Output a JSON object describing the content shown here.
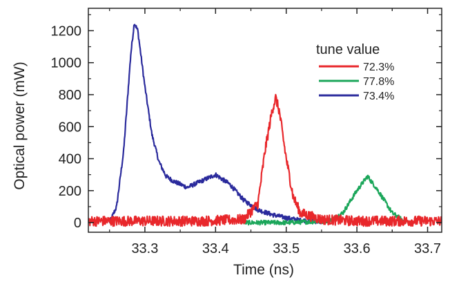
{
  "chart_data": {
    "type": "line",
    "xlabel": "Time (ns)",
    "ylabel": "Optical power (mW)",
    "xlim": [
      33.22,
      33.72
    ],
    "ylim": [
      -60,
      1340
    ],
    "x_ticks": [
      33.3,
      33.4,
      33.5,
      33.6,
      33.7
    ],
    "x_tick_labels": [
      "33.3",
      "33.4",
      "33.5",
      "33.6",
      "33.7"
    ],
    "y_ticks": [
      0,
      200,
      400,
      600,
      800,
      1000,
      1200
    ],
    "y_tick_labels": [
      "0",
      "200",
      "400",
      "600",
      "800",
      "1000",
      "1200"
    ],
    "grid": false,
    "legend": {
      "title": "tune value",
      "placement": "top-right"
    },
    "series": [
      {
        "name": "72.3%",
        "color": "#e8272b",
        "x": [
          33.22,
          33.3,
          33.38,
          33.44,
          33.46,
          33.47,
          33.48,
          33.485,
          33.49,
          33.5,
          33.51,
          33.52,
          33.55,
          33.6,
          33.65,
          33.72
        ],
        "y": [
          10,
          10,
          10,
          20,
          120,
          450,
          700,
          780,
          700,
          400,
          160,
          60,
          20,
          10,
          10,
          10
        ]
      },
      {
        "name": "77.8%",
        "color": "#1ba65a",
        "x": [
          33.44,
          33.5,
          33.56,
          33.58,
          33.6,
          33.615,
          33.63,
          33.65,
          33.67
        ],
        "y": [
          0,
          0,
          10,
          60,
          200,
          290,
          200,
          60,
          0
        ]
      },
      {
        "name": "73.4%",
        "color": "#2a2a9c",
        "x": [
          33.25,
          33.26,
          33.27,
          33.28,
          33.285,
          33.29,
          33.3,
          33.31,
          33.32,
          33.33,
          33.34,
          33.36,
          33.38,
          33.4,
          33.42,
          33.44,
          33.46,
          33.48,
          33.5,
          33.52,
          33.55
        ],
        "y": [
          0,
          100,
          450,
          1050,
          1250,
          1200,
          850,
          550,
          380,
          290,
          260,
          220,
          260,
          300,
          240,
          140,
          80,
          50,
          30,
          15,
          5
        ]
      }
    ]
  }
}
